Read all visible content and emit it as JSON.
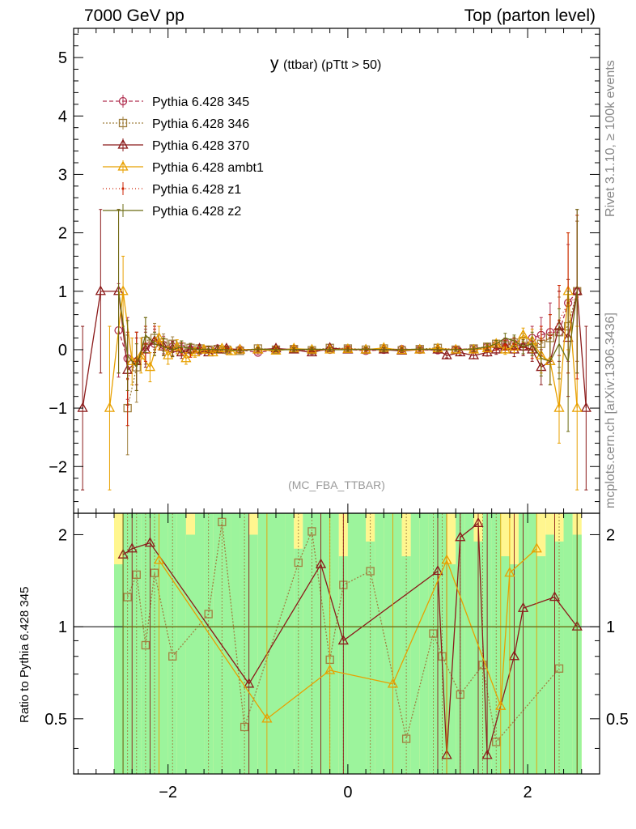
{
  "header": {
    "left": "7000 GeV pp",
    "right": "Top (parton level)"
  },
  "side_text": {
    "rivet": "Rivet 3.1.10, ≥ 100k events",
    "mcplots": "mcplots.cern.ch [arXiv:1306.3436]"
  },
  "ratio_ylabel": "Ratio to Pythia 6.428 345",
  "chart_data": {
    "type": "line",
    "title": "y (ttbar) (pTtt > 50)",
    "title_main": "y",
    "title_sub": "(ttbar) (pTtt > 50)",
    "watermark": "(MC_FBA_TTBAR)",
    "xlabel": "",
    "ylabel": "",
    "xlim": [
      -3.05,
      2.8
    ],
    "ylim": [
      -2.8,
      5.5
    ],
    "xticks": [
      -2,
      0,
      2
    ],
    "xtick_labels": [
      "−2",
      "0",
      "2"
    ],
    "yticks": [
      -2,
      -1,
      0,
      1,
      2,
      3,
      4,
      5
    ],
    "ytick_labels": [
      "−2",
      "−1",
      "0",
      "1",
      "2",
      "3",
      "4",
      "5"
    ],
    "legend_position": "top-left",
    "series": [
      {
        "name": "Pythia 6.428 345",
        "color": "#b03050",
        "dash": "5,3",
        "marker": "circle",
        "x": [
          -2.55,
          -2.45,
          -2.35,
          -2.25,
          -2.15,
          -2.05,
          -1.95,
          -1.85,
          -1.75,
          -1.65,
          -1.55,
          -1.45,
          -1.35,
          -1.2,
          -1.0,
          -0.8,
          -0.6,
          -0.4,
          -0.2,
          0.0,
          0.2,
          0.4,
          0.6,
          0.8,
          1.0,
          1.2,
          1.4,
          1.55,
          1.65,
          1.75,
          1.85,
          1.95,
          2.05,
          2.15,
          2.25,
          2.35,
          2.45,
          2.55
        ],
        "y": [
          0.33,
          -0.15,
          -0.2,
          0.05,
          0.1,
          0.08,
          0.05,
          0.02,
          0.0,
          -0.02,
          0.0,
          0.02,
          -0.01,
          0.0,
          -0.05,
          0.0,
          0.01,
          -0.02,
          0.0,
          0.01,
          -0.02,
          0.0,
          0.01,
          0.0,
          -0.01,
          0.0,
          0.02,
          0.05,
          0.08,
          0.12,
          0.1,
          0.05,
          0.2,
          0.25,
          0.3,
          0.3,
          0.8,
          1.0
        ],
        "err": [
          0.8,
          0.7,
          0.5,
          0.3,
          0.2,
          0.15,
          0.1,
          0.08,
          0.06,
          0.05,
          0.05,
          0.04,
          0.04,
          0.03,
          0.03,
          0.03,
          0.03,
          0.03,
          0.03,
          0.03,
          0.03,
          0.03,
          0.03,
          0.03,
          0.03,
          0.03,
          0.04,
          0.05,
          0.06,
          0.08,
          0.1,
          0.15,
          0.2,
          0.3,
          0.5,
          0.7,
          1.0,
          1.2
        ]
      },
      {
        "name": "Pythia 6.428 346",
        "color": "#a08040",
        "dash": "2,2",
        "marker": "square",
        "x": [
          -2.45,
          -2.35,
          -2.25,
          -2.15,
          -2.05,
          -1.95,
          -1.85,
          -1.75,
          -1.65,
          -1.55,
          -1.45,
          -1.35,
          -1.2,
          -1.0,
          -0.8,
          -0.6,
          -0.4,
          -0.2,
          0.0,
          0.2,
          0.4,
          0.6,
          0.8,
          1.0,
          1.2,
          1.4,
          1.55,
          1.65,
          1.75,
          1.85,
          1.95,
          2.05,
          2.15,
          2.25,
          2.35,
          2.45,
          2.55
        ],
        "y": [
          -1.0,
          -0.3,
          0.15,
          0.2,
          0.12,
          0.1,
          0.05,
          0.03,
          0.02,
          0.0,
          0.01,
          0.0,
          -0.02,
          0.02,
          0.0,
          0.01,
          -0.01,
          0.03,
          0.02,
          0.0,
          0.02,
          -0.01,
          0.01,
          0.03,
          0.0,
          0.02,
          0.05,
          0.1,
          0.08,
          0.12,
          0.15,
          0.05,
          0.1,
          0.2,
          0.3,
          0.4,
          1.0
        ],
        "err": [
          0.8,
          0.6,
          0.4,
          0.25,
          0.15,
          0.12,
          0.1,
          0.08,
          0.06,
          0.05,
          0.05,
          0.04,
          0.03,
          0.03,
          0.03,
          0.03,
          0.03,
          0.03,
          0.03,
          0.03,
          0.03,
          0.03,
          0.03,
          0.03,
          0.03,
          0.04,
          0.05,
          0.06,
          0.08,
          0.1,
          0.12,
          0.15,
          0.25,
          0.4,
          0.6,
          0.8,
          1.2
        ]
      },
      {
        "name": "Pythia 6.428 370",
        "color": "#8b1a1a",
        "dash": "",
        "marker": "triangle",
        "x": [
          -2.95,
          -2.75,
          -2.55,
          -2.45,
          -2.35,
          -2.25,
          -2.15,
          -2.05,
          -1.95,
          -1.85,
          -1.75,
          -1.65,
          -1.55,
          -1.45,
          -1.35,
          -1.2,
          -1.0,
          -0.8,
          -0.6,
          -0.4,
          -0.2,
          0.0,
          0.2,
          0.4,
          0.6,
          0.8,
          1.0,
          1.1,
          1.25,
          1.4,
          1.55,
          1.65,
          1.75,
          1.85,
          1.95,
          2.05,
          2.15,
          2.25,
          2.35,
          2.45,
          2.55,
          2.65
        ],
        "y": [
          -1.0,
          1.0,
          1.0,
          -0.35,
          -0.2,
          0.0,
          0.15,
          0.05,
          0.02,
          -0.05,
          0.0,
          0.02,
          -0.05,
          0.0,
          0.02,
          0.0,
          0.0,
          0.02,
          0.0,
          -0.05,
          0.03,
          0.0,
          0.0,
          0.0,
          -0.02,
          0.0,
          0.0,
          -0.1,
          -0.05,
          -0.1,
          -0.05,
          0.0,
          0.05,
          0.0,
          0.05,
          0.0,
          -0.3,
          -0.2,
          0.4,
          0.2,
          1.0,
          -1.0
        ],
        "err": [
          1.4,
          1.4,
          1.4,
          0.6,
          0.4,
          0.3,
          0.2,
          0.15,
          0.12,
          0.1,
          0.08,
          0.06,
          0.05,
          0.04,
          0.04,
          0.03,
          0.03,
          0.03,
          0.03,
          0.03,
          0.03,
          0.03,
          0.03,
          0.03,
          0.03,
          0.03,
          0.03,
          0.04,
          0.04,
          0.05,
          0.06,
          0.08,
          0.1,
          0.12,
          0.15,
          0.2,
          0.3,
          0.4,
          0.6,
          1.0,
          1.4,
          1.4
        ]
      },
      {
        "name": "Pythia 6.428 ambt1",
        "color": "#e8a000",
        "dash": "",
        "marker": "triangle",
        "x": [
          -2.65,
          -2.5,
          -2.4,
          -2.3,
          -2.2,
          -2.1,
          -2.0,
          -1.9,
          -1.8,
          -1.7,
          -1.6,
          -1.5,
          -1.4,
          -1.3,
          -1.2,
          -1.0,
          -0.8,
          -0.6,
          -0.4,
          -0.2,
          0.0,
          0.2,
          0.4,
          0.6,
          0.8,
          1.0,
          1.2,
          1.4,
          1.55,
          1.65,
          1.75,
          1.85,
          1.95,
          2.05,
          2.15,
          2.25,
          2.35,
          2.45,
          2.55
        ],
        "y": [
          -1.0,
          1.0,
          -0.2,
          -0.1,
          -0.3,
          0.2,
          -0.1,
          0.05,
          -0.15,
          -0.05,
          0.0,
          -0.05,
          0.02,
          -0.03,
          0.0,
          0.0,
          -0.02,
          0.02,
          0.0,
          0.0,
          0.01,
          0.0,
          0.03,
          -0.01,
          0.0,
          0.02,
          0.0,
          0.0,
          0.02,
          0.1,
          0.0,
          0.05,
          0.25,
          0.15,
          -0.1,
          -0.2,
          -1.0,
          1.0,
          -1.0
        ],
        "err": [
          1.4,
          0.6,
          0.4,
          0.3,
          0.25,
          0.2,
          0.15,
          0.12,
          0.1,
          0.08,
          0.06,
          0.05,
          0.04,
          0.04,
          0.03,
          0.03,
          0.03,
          0.03,
          0.03,
          0.03,
          0.03,
          0.03,
          0.03,
          0.03,
          0.03,
          0.03,
          0.03,
          0.04,
          0.05,
          0.06,
          0.08,
          0.1,
          0.12,
          0.2,
          0.3,
          0.4,
          0.6,
          1.0,
          1.4
        ]
      },
      {
        "name": "Pythia 6.428 z1",
        "color": "#cc2200",
        "dash": "1,3",
        "marker": "dot",
        "x": [
          -2.45,
          -2.35,
          -2.25,
          -2.15,
          -2.05,
          -1.95,
          -1.85,
          -1.75,
          -1.65,
          -1.55,
          -1.45,
          -1.35,
          -1.2,
          -1.0,
          -0.8,
          -0.6,
          -0.4,
          -0.2,
          0.0,
          0.2,
          0.4,
          0.6,
          0.8,
          1.0,
          1.2,
          1.4,
          1.55,
          1.65,
          1.75,
          1.85,
          1.95,
          2.05,
          2.15,
          2.25,
          2.35,
          2.45,
          2.55
        ],
        "y": [
          -0.5,
          -0.2,
          0.1,
          0.2,
          0.05,
          0.0,
          0.02,
          -0.05,
          0.01,
          0.0,
          0.0,
          0.02,
          0.0,
          0.0,
          0.01,
          0.0,
          0.0,
          0.0,
          0.02,
          0.0,
          0.0,
          0.01,
          0.0,
          0.0,
          0.02,
          0.0,
          0.03,
          0.05,
          0.08,
          0.1,
          0.05,
          0.0,
          0.15,
          0.2,
          0.5,
          0.8,
          0.9
        ],
        "err": [
          0.8,
          0.5,
          0.3,
          0.2,
          0.15,
          0.12,
          0.1,
          0.08,
          0.06,
          0.05,
          0.05,
          0.04,
          0.03,
          0.03,
          0.03,
          0.03,
          0.03,
          0.03,
          0.03,
          0.03,
          0.03,
          0.03,
          0.03,
          0.03,
          0.03,
          0.04,
          0.05,
          0.06,
          0.08,
          0.1,
          0.12,
          0.15,
          0.25,
          0.4,
          0.6,
          1.2,
          1.4
        ]
      },
      {
        "name": "Pythia 6.428 z2",
        "color": "#6b6b10",
        "dash": "",
        "marker": "none",
        "x": [
          -2.55,
          -2.45,
          -2.35,
          -2.25,
          -2.15,
          -2.05,
          -1.95,
          -1.85,
          -1.75,
          -1.65,
          -1.55,
          -1.45,
          -1.35,
          -1.2,
          -1.0,
          -0.8,
          -0.6,
          -0.4,
          -0.2,
          0.0,
          0.2,
          0.4,
          0.6,
          0.8,
          1.0,
          1.2,
          1.4,
          1.55,
          1.65,
          1.75,
          1.85,
          1.95,
          2.05,
          2.15,
          2.25,
          2.35,
          2.45,
          2.55
        ],
        "y": [
          1.0,
          -0.1,
          -0.3,
          0.25,
          0.1,
          0.05,
          0.0,
          0.05,
          0.02,
          0.0,
          0.01,
          0.0,
          0.0,
          -0.02,
          0.01,
          0.0,
          0.0,
          0.01,
          0.0,
          0.0,
          0.01,
          0.0,
          0.0,
          0.01,
          0.0,
          0.0,
          0.01,
          0.05,
          0.1,
          0.2,
          0.15,
          0.05,
          0.1,
          -0.15,
          -0.2,
          0.1,
          -0.2,
          1.0
        ],
        "err": [
          1.4,
          0.6,
          0.4,
          0.3,
          0.2,
          0.15,
          0.12,
          0.1,
          0.08,
          0.06,
          0.05,
          0.05,
          0.04,
          0.03,
          0.03,
          0.03,
          0.03,
          0.03,
          0.03,
          0.03,
          0.03,
          0.03,
          0.03,
          0.03,
          0.03,
          0.03,
          0.04,
          0.05,
          0.06,
          0.08,
          0.1,
          0.12,
          0.2,
          0.3,
          0.4,
          0.6,
          1.2,
          1.4
        ]
      }
    ],
    "ratio": {
      "ylim": [
        0.33,
        2.35
      ],
      "yticks": [
        0.5,
        1,
        2
      ],
      "ytick_labels": [
        "0.5",
        "1",
        "2"
      ],
      "band_x_edges": [
        -2.6,
        -2.5,
        -2.4,
        -2.3,
        -2.2,
        -2.1,
        -2.0,
        -1.9,
        -1.8,
        -1.7,
        -1.6,
        -1.5,
        -1.4,
        -1.3,
        -1.2,
        -1.1,
        -1.0,
        -0.9,
        -0.8,
        -0.7,
        -0.6,
        -0.5,
        -0.4,
        -0.3,
        -0.2,
        -0.1,
        0.0,
        0.1,
        0.2,
        0.3,
        0.4,
        0.5,
        0.6,
        0.7,
        0.8,
        0.9,
        1.0,
        1.1,
        1.2,
        1.3,
        1.4,
        1.5,
        1.6,
        1.7,
        1.8,
        1.9,
        2.0,
        2.1,
        2.2,
        2.3,
        2.4,
        2.5,
        2.6
      ],
      "band_green_lo": [
        0.33,
        0.33,
        0.33,
        0.33,
        0.33,
        0.33,
        0.33,
        0.33,
        0.33,
        0.33,
        0.33,
        0.33,
        0.33,
        0.33,
        0.33,
        0.33,
        0.33,
        0.33,
        0.33,
        0.33,
        0.33,
        0.33,
        0.33,
        0.33,
        0.33,
        0.33,
        0.33,
        0.33,
        0.33,
        0.33,
        0.33,
        0.33,
        0.33,
        0.33,
        0.33,
        0.33,
        0.33,
        0.33,
        0.33,
        0.33,
        0.33,
        0.33,
        0.33,
        0.33,
        0.33,
        0.33,
        0.33,
        0.33,
        0.33,
        0.33,
        0.33,
        0.33
      ],
      "band_green_hi": [
        1.6,
        2.35,
        2.35,
        2.35,
        2.35,
        2.35,
        2.35,
        2.35,
        2.0,
        2.35,
        2.35,
        2.35,
        2.35,
        2.35,
        2.35,
        2.0,
        2.35,
        2.35,
        2.35,
        2.35,
        1.8,
        2.35,
        2.35,
        2.35,
        2.35,
        1.7,
        2.35,
        2.35,
        1.9,
        2.35,
        2.35,
        2.35,
        1.7,
        2.35,
        2.35,
        2.35,
        2.35,
        1.6,
        2.35,
        2.35,
        1.9,
        2.35,
        2.35,
        1.7,
        1.6,
        2.35,
        2.35,
        1.7,
        2.0,
        1.9,
        2.35,
        2.0
      ],
      "band_yellow_hi": [
        2.35,
        2.35,
        2.35,
        2.35,
        2.35,
        2.35,
        2.35,
        2.35,
        2.35,
        2.35,
        2.35,
        2.35,
        2.35,
        2.35,
        2.35,
        2.35,
        2.35,
        2.35,
        2.35,
        2.35,
        2.35,
        2.35,
        2.35,
        2.35,
        2.35,
        2.35,
        2.35,
        2.35,
        2.35,
        2.35,
        2.35,
        2.35,
        2.35,
        2.35,
        2.35,
        2.35,
        2.35,
        2.35,
        2.35,
        2.35,
        2.35,
        2.35,
        2.35,
        2.35,
        2.35,
        2.35,
        2.35,
        2.35,
        2.35,
        2.35,
        2.35,
        2.35
      ],
      "series_ratio": [
        {
          "name": "Pythia 6.428 346",
          "x": [
            -2.45,
            -2.35,
            -2.25,
            -2.15,
            -1.95,
            -1.55,
            -1.4,
            -1.15,
            -0.55,
            -0.4,
            -0.2,
            -0.05,
            0.25,
            0.65,
            0.95,
            1.05,
            1.25,
            1.5,
            1.65,
            2.35
          ],
          "y": [
            1.25,
            1.48,
            0.87,
            1.5,
            0.8,
            1.1,
            2.2,
            0.47,
            1.62,
            2.05,
            0.78,
            1.37,
            1.52,
            0.43,
            0.95,
            0.8,
            0.6,
            0.75,
            0.42,
            0.73
          ]
        },
        {
          "name": "Pythia 6.428 370",
          "x": [
            -2.5,
            -2.4,
            -2.2,
            -1.1,
            -0.3,
            -0.05,
            1.0,
            1.1,
            1.25,
            1.45,
            1.55,
            1.85,
            1.95,
            2.3,
            2.55
          ],
          "y": [
            1.72,
            1.8,
            1.88,
            0.65,
            1.6,
            0.9,
            1.52,
            0.38,
            1.96,
            2.18,
            0.38,
            0.8,
            1.15,
            1.25,
            1.0
          ]
        },
        {
          "name": "Pythia 6.428 ambt1",
          "x": [
            -2.1,
            -0.9,
            -0.2,
            0.5,
            1.1,
            1.7,
            1.8,
            2.1
          ],
          "y": [
            1.65,
            0.5,
            0.72,
            0.65,
            1.65,
            0.55,
            1.5,
            1.8
          ]
        },
        {
          "name": "Pythia 6.428 z2",
          "x": [
            -2.5,
            2.55
          ],
          "y": [
            1.0,
            1.0
          ]
        }
      ]
    }
  }
}
